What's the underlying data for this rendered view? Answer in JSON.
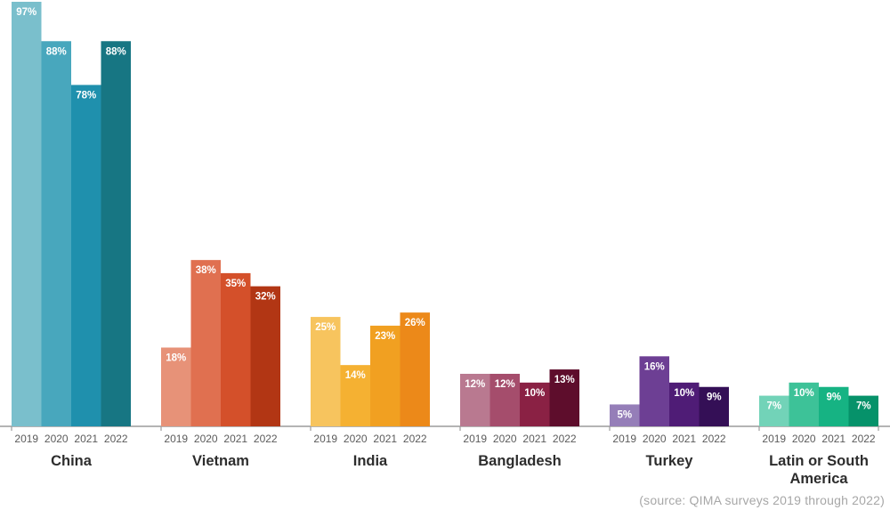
{
  "chart_data": {
    "type": "bar",
    "groups": [
      {
        "name": "China",
        "label_lines": [
          "China"
        ],
        "colors": [
          "#7abfcc",
          "#48a7bd",
          "#1f90ad",
          "#177683"
        ],
        "values": [
          97,
          88,
          78,
          88
        ]
      },
      {
        "name": "Vietnam",
        "label_lines": [
          "Vietnam"
        ],
        "colors": [
          "#e79278",
          "#e07050",
          "#d4502a",
          "#b23614"
        ],
        "values": [
          18,
          38,
          35,
          32
        ]
      },
      {
        "name": "India",
        "label_lines": [
          "India"
        ],
        "colors": [
          "#f7c45e",
          "#f5b132",
          "#f1a021",
          "#ec8919"
        ],
        "values": [
          25,
          14,
          23,
          26
        ]
      },
      {
        "name": "Bangladesh",
        "label_lines": [
          "Bangladesh"
        ],
        "colors": [
          "#b97990",
          "#a54d6c",
          "#8a2144",
          "#5e0d2c"
        ],
        "values": [
          12,
          12,
          10,
          13
        ]
      },
      {
        "name": "Turkey",
        "label_lines": [
          "Turkey"
        ],
        "colors": [
          "#957eb8",
          "#6d3f94",
          "#4f1c76",
          "#340f56"
        ],
        "values": [
          5,
          16,
          10,
          9
        ]
      },
      {
        "name": "Latin or South America",
        "label_lines": [
          "Latin or South",
          "America"
        ],
        "colors": [
          "#72d3b8",
          "#3dc298",
          "#16b383",
          "#06926a"
        ],
        "values": [
          7,
          10,
          9,
          7
        ]
      }
    ],
    "years": [
      "2019",
      "2020",
      "2021",
      "2022"
    ],
    "value_suffix": "%",
    "ylim": [
      0,
      100
    ],
    "legend": "none",
    "grid": false
  },
  "source_note": "(source: QIMA surveys 2019 through 2022)"
}
